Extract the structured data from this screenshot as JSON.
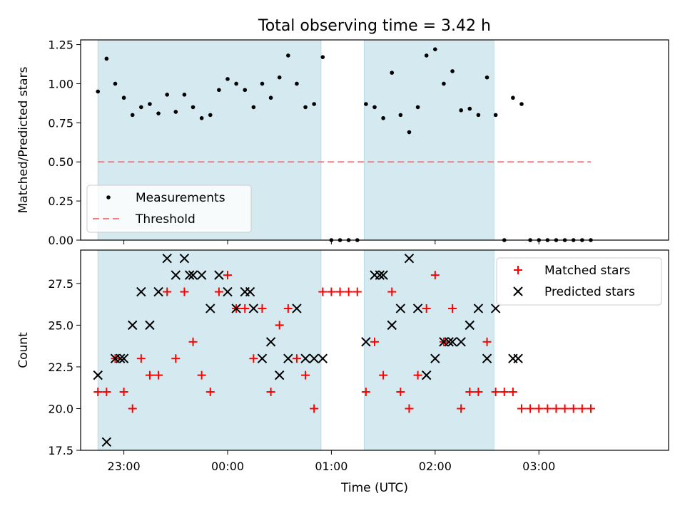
{
  "figure": {
    "title": "Total observing time = 3.42 h",
    "shade_color": "#d4eaf0",
    "shade_edge": "#b8dce6"
  },
  "chart_data": [
    {
      "type": "scatter",
      "ylabel": "Matched/Predicted stars",
      "xlabel": "",
      "xlim": [
        "22:35",
        "04:15"
      ],
      "ylim": [
        0,
        1.28
      ],
      "yticks": [
        0.0,
        0.25,
        0.5,
        0.75,
        1.0,
        1.25
      ],
      "ytick_labels": [
        "0.00",
        "0.25",
        "0.50",
        "0.75",
        "1.00",
        "1.25"
      ],
      "shaded_intervals": [
        [
          "22:45",
          "00:54"
        ],
        [
          "01:19",
          "02:34"
        ]
      ],
      "legend": {
        "position": "lower left",
        "entries": [
          "Measurements",
          "Threshold"
        ]
      },
      "series": [
        {
          "name": "Measurements",
          "kind": "points",
          "color": "#000000",
          "x": [
            "22:45",
            "22:50",
            "22:55",
            "23:00",
            "23:05",
            "23:10",
            "23:15",
            "23:20",
            "23:25",
            "23:30",
            "23:35",
            "23:40",
            "23:45",
            "23:50",
            "23:55",
            "00:00",
            "00:05",
            "00:10",
            "00:15",
            "00:20",
            "00:25",
            "00:30",
            "00:35",
            "00:40",
            "00:45",
            "00:50",
            "00:55",
            "01:00",
            "01:05",
            "01:10",
            "01:15",
            "01:20",
            "01:25",
            "01:30",
            "01:35",
            "01:40",
            "01:45",
            "01:50",
            "01:55",
            "02:00",
            "02:05",
            "02:10",
            "02:15",
            "02:20",
            "02:25",
            "02:30",
            "02:35",
            "02:40",
            "02:45",
            "02:50",
            "02:55",
            "03:00",
            "03:05",
            "03:10",
            "03:15",
            "03:20",
            "03:25",
            "03:30"
          ],
          "y": [
            0.95,
            1.16,
            1.0,
            0.91,
            0.8,
            0.85,
            0.87,
            0.81,
            0.93,
            0.82,
            0.93,
            0.85,
            0.78,
            0.8,
            0.96,
            1.03,
            1.0,
            0.96,
            0.85,
            1.0,
            0.91,
            1.04,
            1.18,
            1.0,
            0.85,
            0.87,
            1.17,
            0,
            0,
            0,
            0,
            0.87,
            0.85,
            0.78,
            1.07,
            0.8,
            0.69,
            0.85,
            1.18,
            1.22,
            1.0,
            1.08,
            0.83,
            0.84,
            0.8,
            1.04,
            0.8,
            0,
            0.91,
            0.87,
            0,
            0,
            0,
            0,
            0,
            0,
            0,
            0
          ]
        },
        {
          "name": "Threshold",
          "kind": "dashed-line",
          "color": "#f08080",
          "x": [
            "22:45",
            "03:30"
          ],
          "y": [
            0.5,
            0.5
          ]
        }
      ]
    },
    {
      "type": "scatter",
      "ylabel": "Count",
      "xlabel": "Time (UTC)",
      "xlim": [
        "22:35",
        "04:15"
      ],
      "ylim": [
        17.5,
        29.5
      ],
      "yticks": [
        17.5,
        20.0,
        22.5,
        25.0,
        27.5
      ],
      "ytick_labels": [
        "17.5",
        "20.0",
        "22.5",
        "25.0",
        "27.5"
      ],
      "xticks": [
        "23:00",
        "00:00",
        "01:00",
        "02:00",
        "03:00"
      ],
      "shaded_intervals": [
        [
          "22:45",
          "00:54"
        ],
        [
          "01:19",
          "02:34"
        ]
      ],
      "legend": {
        "position": "upper right",
        "entries": [
          "Matched stars",
          "Predicted stars"
        ]
      },
      "series": [
        {
          "name": "Matched stars",
          "marker": "plus",
          "color": "#ff0000",
          "x": [
            "22:45",
            "22:50",
            "22:55",
            "23:00",
            "23:05",
            "23:10",
            "23:15",
            "23:20",
            "23:25",
            "23:30",
            "23:35",
            "23:40",
            "23:45",
            "23:50",
            "23:55",
            "00:00",
            "00:05",
            "00:10",
            "00:15",
            "00:20",
            "00:25",
            "00:30",
            "00:35",
            "00:40",
            "00:45",
            "00:50",
            "00:55",
            "01:00",
            "01:05",
            "01:10",
            "01:15",
            "01:20",
            "01:25",
            "01:30",
            "01:35",
            "01:40",
            "01:45",
            "01:50",
            "01:55",
            "02:00",
            "02:05",
            "02:10",
            "02:15",
            "02:20",
            "02:25",
            "02:30",
            "02:35",
            "02:40",
            "02:45",
            "02:50",
            "02:55",
            "03:00",
            "03:05",
            "03:10",
            "03:15",
            "03:20",
            "03:25",
            "03:30"
          ],
          "y": [
            21,
            21,
            23,
            21,
            20,
            23,
            22,
            22,
            27,
            23,
            27,
            24,
            22,
            21,
            27,
            28,
            26,
            26,
            23,
            26,
            21,
            25,
            26,
            23,
            22,
            20,
            27,
            27,
            27,
            27,
            27,
            21,
            24,
            22,
            27,
            21,
            20,
            22,
            26,
            28,
            24,
            26,
            20,
            21,
            21,
            24,
            21,
            21,
            21,
            20,
            20,
            20,
            20,
            20,
            20,
            20,
            20,
            20
          ]
        },
        {
          "name": "Predicted stars",
          "marker": "x",
          "color": "#000000",
          "x": [
            "22:45",
            "22:50",
            "22:55",
            "22:58",
            "23:00",
            "23:05",
            "23:10",
            "23:15",
            "23:20",
            "23:25",
            "23:30",
            "23:35",
            "23:38",
            "23:40",
            "23:45",
            "23:50",
            "23:55",
            "00:00",
            "00:05",
            "00:10",
            "00:13",
            "00:15",
            "00:20",
            "00:25",
            "00:30",
            "00:35",
            "00:40",
            "00:45",
            "00:50",
            "00:55",
            "01:20",
            "01:25",
            "01:28",
            "01:30",
            "01:35",
            "01:40",
            "01:45",
            "01:50",
            "01:55",
            "02:00",
            "02:05",
            "02:08",
            "02:10",
            "02:15",
            "02:20",
            "02:25",
            "02:30",
            "02:35",
            "02:45",
            "02:48"
          ],
          "y": [
            22,
            18,
            23,
            23,
            23,
            25,
            27,
            25,
            27,
            29,
            28,
            29,
            28,
            28,
            28,
            26,
            28,
            27,
            26,
            27,
            27,
            26,
            23,
            24,
            22,
            23,
            26,
            23,
            23,
            23,
            24,
            28,
            28,
            28,
            25,
            26,
            29,
            26,
            22,
            23,
            24,
            24,
            24,
            24,
            25,
            26,
            23,
            26,
            23,
            23
          ]
        }
      ]
    }
  ]
}
